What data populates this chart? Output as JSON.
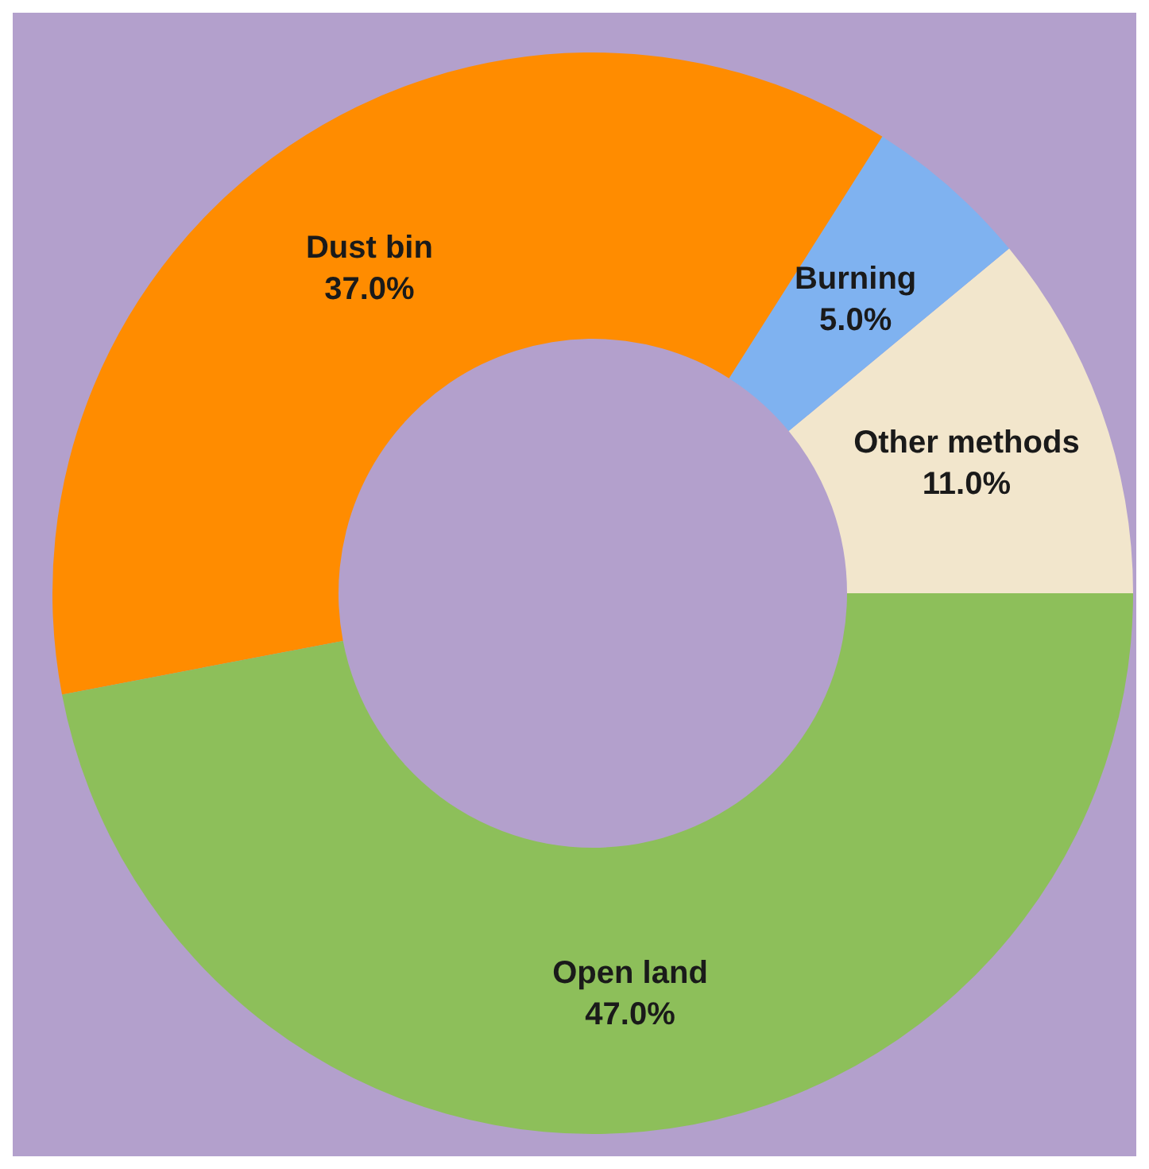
{
  "chart_data": {
    "type": "donut",
    "categories": [
      "Other methods",
      "Burning",
      "Dust bin",
      "Open land"
    ],
    "values": [
      11,
      5,
      37,
      47
    ],
    "colors": [
      "#f2e6cc",
      "#7fb2f0",
      "#ff8c00",
      "#8dbf5a"
    ],
    "value_labels": [
      "11.0%",
      "5.0%",
      "37.0%",
      "47.0%"
    ]
  }
}
